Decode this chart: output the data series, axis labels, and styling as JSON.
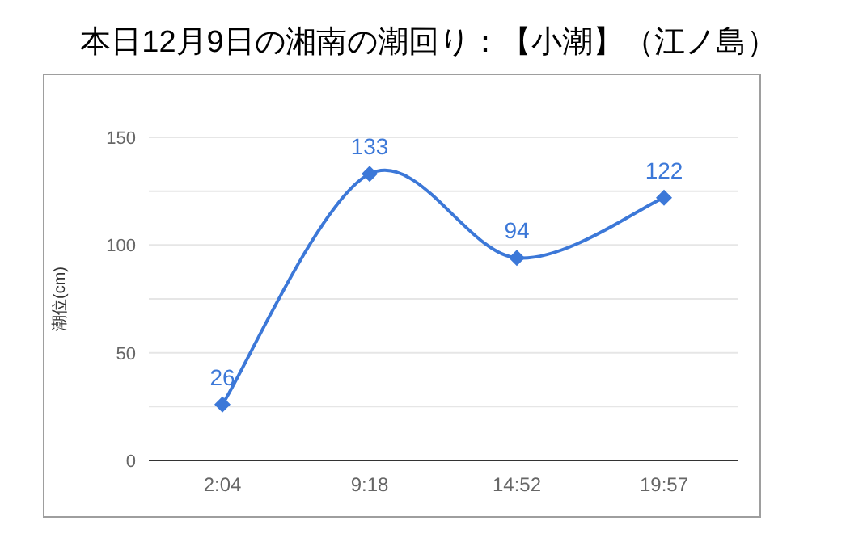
{
  "chart_data": {
    "type": "line",
    "title": "本日12月9日の湘南の潮回り：【小潮】（江ノ島）",
    "ylabel": "潮位(cm)",
    "categories": [
      "2:04",
      "9:18",
      "14:52",
      "19:57"
    ],
    "series": [
      {
        "color": "#3c78d8",
        "values": [
          26,
          133,
          94,
          122
        ]
      }
    ],
    "ylim": [
      0,
      150
    ],
    "yticks": [
      0,
      {
        "value": 25,
        "label": null
      },
      50,
      {
        "value": 75,
        "label": null
      },
      100,
      {
        "value": 125,
        "label": null
      },
      150
    ],
    "grid": "y",
    "marker": "diamond",
    "line_style": "solid",
    "data_labels": true
  }
}
